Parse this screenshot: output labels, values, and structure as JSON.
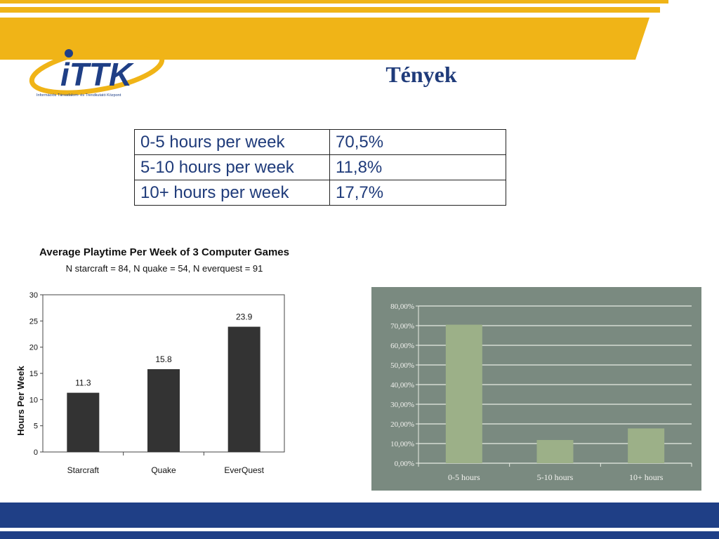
{
  "slide": {
    "title": "Tények",
    "logo": {
      "wordmark": "iTTK",
      "tagline": "Információs Társadalom- és Trendkutató Központ"
    },
    "colors": {
      "accent": "#f0b417",
      "brand_blue": "#1f3f86",
      "title_blue": "#1f3b7a"
    }
  },
  "table": {
    "rows": [
      {
        "label": "0-5 hours per week",
        "value": "70,5%"
      },
      {
        "label": "5-10 hours per week",
        "value": "11,8%"
      },
      {
        "label": "10+ hours per week",
        "value": "17,7%"
      }
    ]
  },
  "chart_data": [
    {
      "type": "bar",
      "title": "Average Playtime Per Week of 3 Computer Games",
      "subtitle": "N starcraft = 84, N quake = 54, N everquest = 91",
      "ylabel": "Hours Per Week",
      "xlabel": "",
      "categories": [
        "Starcraft",
        "Quake",
        "EverQuest"
      ],
      "values": [
        11.3,
        15.8,
        23.9
      ],
      "data_labels": [
        "11.3",
        "15.8",
        "23.9"
      ],
      "ylim": [
        0,
        30
      ],
      "yticks": [
        0,
        5,
        10,
        15,
        20,
        25,
        30
      ],
      "ytick_labels": [
        "0",
        "5",
        "10",
        "15",
        "20",
        "25",
        "30"
      ],
      "bar_color": "#333333",
      "grid": false
    },
    {
      "type": "bar",
      "title": "",
      "categories": [
        "0-5 hours",
        "5-10 hours",
        "10+ hours"
      ],
      "values": [
        70.5,
        11.8,
        17.7
      ],
      "ylim": [
        0,
        80
      ],
      "yticks": [
        0,
        10,
        20,
        30,
        40,
        50,
        60,
        70,
        80
      ],
      "ytick_labels": [
        "0,00%",
        "10,00%",
        "20,00%",
        "30,00%",
        "40,00%",
        "50,00%",
        "60,00%",
        "70,00%",
        "80,00%"
      ],
      "bar_color": "#9cb088",
      "background": "#7a8a80",
      "grid": true
    }
  ]
}
